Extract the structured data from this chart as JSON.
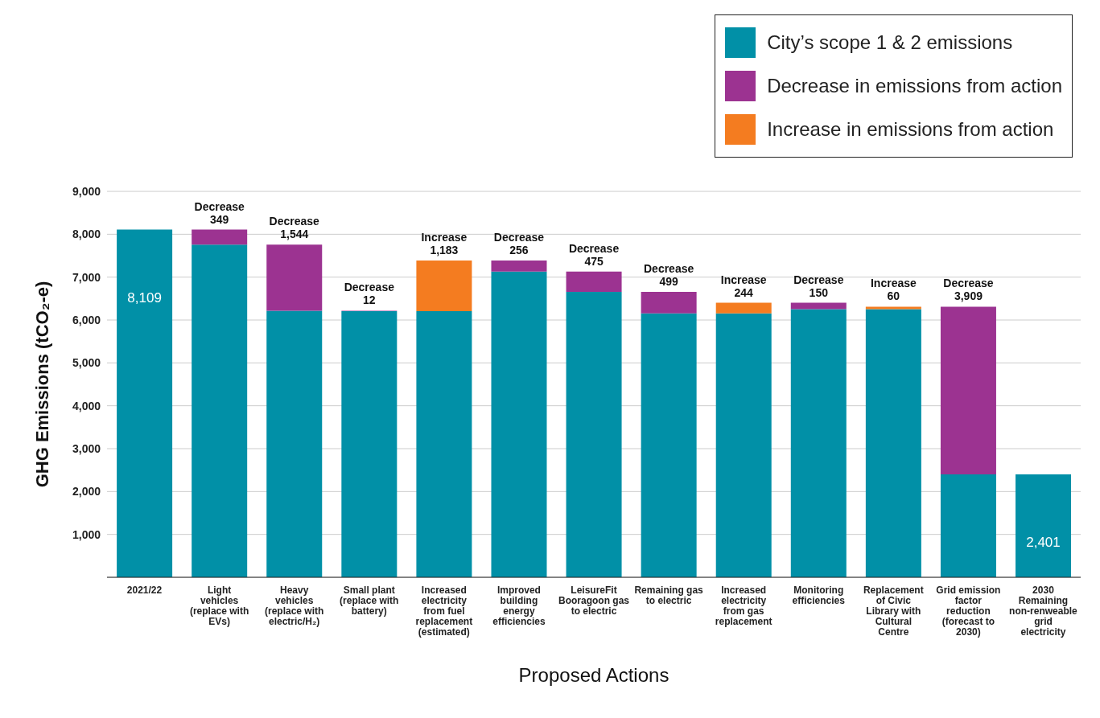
{
  "chart_data": {
    "type": "bar",
    "stacked": true,
    "xlabel": "Proposed Actions",
    "ylabel": "GHG Emissions (tCO₂-e)",
    "categories": [
      "2021/22",
      "Light vehicles (replace with EVs)",
      "Heavy vehicles (replace with electric/H₂)",
      "Small plant (replace with battery)",
      "Increased electricity from fuel replacement (estimated)",
      "Improved building energy efficiencies",
      "LeisureFit Booragoon gas to electric",
      "Remaining gas to electric",
      "Increased electricity from gas replacement",
      "Monitoring efficiencies",
      "Replacement of Civic Library with Cultural Centre",
      "Grid emission factor reduction (forecast to 2030)",
      "2030 Remaining non-renweable grid electricity"
    ],
    "series": [
      {
        "name": "City’s scope 1 & 2 emissions",
        "color": "#0190a7",
        "values": [
          8109,
          7760,
          6216,
          6204,
          6204,
          7131,
          6656,
          6157,
          6157,
          6251,
          6251,
          2401,
          2401
        ],
        "value_labels": [
          "8,109",
          null,
          null,
          null,
          null,
          null,
          null,
          null,
          null,
          null,
          null,
          null,
          "2,401"
        ]
      },
      {
        "name": "Decrease in emissions from action",
        "color": "#9c3391",
        "values": [
          null,
          349,
          1544,
          12,
          null,
          256,
          475,
          499,
          null,
          150,
          null,
          3909,
          null
        ],
        "value_labels": [
          null,
          "Decrease 349",
          "Decrease 1,544",
          "Decrease 12",
          null,
          "Decrease 256",
          "Decrease 475",
          "Decrease 499",
          null,
          "Decrease 150",
          null,
          "Decrease 3,909",
          null
        ]
      },
      {
        "name": "Increase in emissions from action",
        "color": "#f47c20",
        "values": [
          null,
          null,
          null,
          null,
          1183,
          null,
          null,
          null,
          244,
          null,
          60,
          null,
          null
        ],
        "value_labels": [
          null,
          null,
          null,
          null,
          "Increase 1,183",
          null,
          null,
          null,
          "Increase 244",
          null,
          "Increase 60",
          null,
          null
        ]
      }
    ],
    "ylim": [
      0,
      9000
    ],
    "yticks": [
      {
        "value": 1000,
        "label": "1,000"
      },
      {
        "value": 2000,
        "label": "2,000"
      },
      {
        "value": 3000,
        "label": "3,000"
      },
      {
        "value": 4000,
        "label": "4,000"
      },
      {
        "value": 5000,
        "label": "5,000"
      },
      {
        "value": 6000,
        "label": "6,000"
      },
      {
        "value": 7000,
        "label": "7,000"
      },
      {
        "value": 8000,
        "label": "8,000"
      },
      {
        "value": 9000,
        "label": "9,000"
      }
    ],
    "grid": "y",
    "legend": "top right"
  }
}
